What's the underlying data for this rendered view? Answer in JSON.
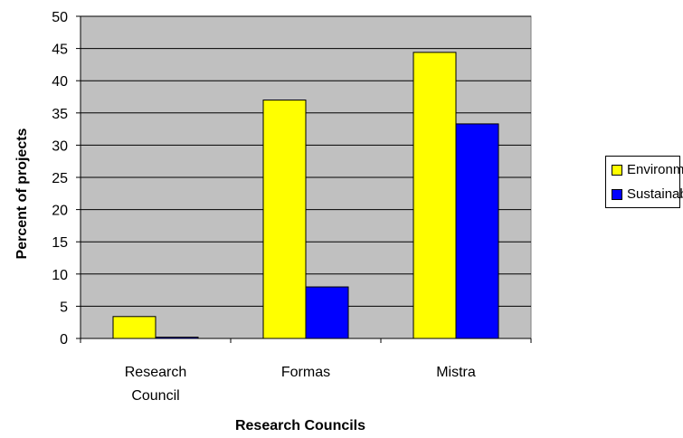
{
  "chart_data": {
    "type": "bar",
    "categories": [
      [
        "Research",
        "Council"
      ],
      [
        "Formas"
      ],
      [
        "Mistra"
      ]
    ],
    "series": [
      {
        "name": "Environment",
        "color": "#FFFF00",
        "values": [
          3.4,
          37,
          44.4
        ]
      },
      {
        "name": "Sustainability",
        "color": "#0000FF",
        "values": [
          0.2,
          8,
          33.3
        ]
      }
    ],
    "title": "",
    "xlabel": "Research Councils",
    "ylabel": "Percent of projects",
    "ylim": [
      0,
      50
    ],
    "yticks": [
      0,
      5,
      10,
      15,
      20,
      25,
      30,
      35,
      40,
      45,
      50
    ],
    "grid": true,
    "plot_background": "#C0C0C0",
    "legend_position": "right"
  }
}
